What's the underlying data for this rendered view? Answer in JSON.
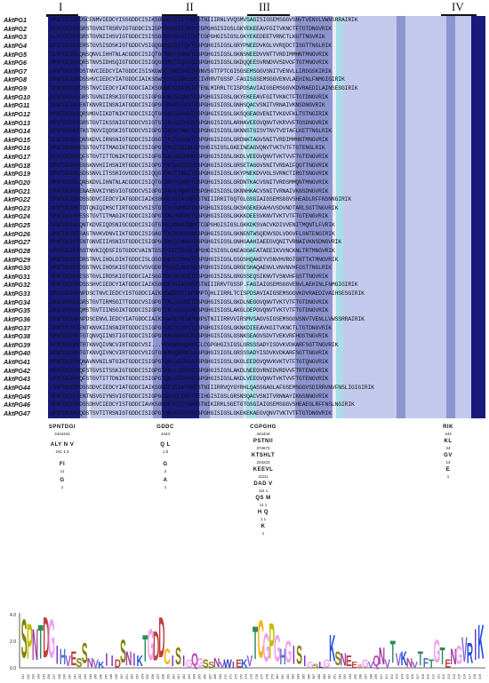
{
  "motifs": [
    "I",
    "II",
    "III",
    "IV"
  ],
  "sequence_names": [
    "AktPG1",
    "AktPG2",
    "AktPG3",
    "AktPG4",
    "AktPG5",
    "AktPG6",
    "AktPG7",
    "AktPG8",
    "AktPG9",
    "AktPG10",
    "AktPG11",
    "AktPG12",
    "AktPG13",
    "AktPG14",
    "AktPG15",
    "AktPG16",
    "AktPG17",
    "AktPG18",
    "AktPG19",
    "AktPG20",
    "AktPG21",
    "AktPG22",
    "AktPG23",
    "AktPG24",
    "AktPG25",
    "AktPG26",
    "AktPG27",
    "AktPG28",
    "AktPG29",
    "AktPG30",
    "AktPG31",
    "AktPG32",
    "AktPG33",
    "AktPG34",
    "AktPG35",
    "AktPG36",
    "AktPG37",
    "AktPG38",
    "AktPG39",
    "AktPG40",
    "AktPG41",
    "AktPG42",
    "AktPG43",
    "AktPG44",
    "AktPG45",
    "AktPG46",
    "AktPG47"
  ],
  "sequences": [
    "SPNTDGIDPDSCENMVIEDCYISSGDDCISIKSGWDQYGIAYGRPSTNIIIRNLVVQSMVSAGISIGSEMSGGVSNVTVENVLVWNSRRAIRIK",
    "SPNTDGIHIGRSTGVNITRSRVIGTGDDCISIGPGSSNISISNVYCGPGHGISIGSLGKYEKEEAVFGITVKNCTFTGTDNGVRIK",
    "SLNTDGIHIGRSTGVNIIHSVIGTGDDCISISSGSPGVDVAITSVTCGPGHGISIGSLGKYEKEDEETVRNCTLKGTTNGVRIK",
    "SPNTDGIHIERSTGVSISDSKIGTGDDCVSIGQGNSQISITQVTCGPGHGISIGSLGRYPNEEDVKGLVVRQDCTISGTTNGLRIK",
    "SLNTDGIHLQNSQNVLIHHTNLACGDDCISIQTGCSNVYINNVTCGPGHGISIGSLGKNSNEEDVVNTTVRDIMMHNTMNGVRIK",
    "SPNTDGIHIQRSTNVSIDHSQIGTGDDCISIGQGSSNITIQKIQCGPGHGISIGSLGKDQQEESVRNDVVSDVGFTGTMNGVRIK",
    "SPNTDGIDPDSTNVCIEDCYIATGDDCISISKGWDEYGKSSNIIVRNVSGTTPTCGISGSEMSGGVSNITVENVLLIRDGSKIRIK",
    "SPNTDGIDPDSSHVCIEDCYIATGDDCIAIKSGWDEYGIGRKSSEIIVRRVTGSSP.FAGISGSEMSGGVENVLAEHINLFNMGIGIRIK",
    "SPNTDGIDPDSSTNVCIEDCYIATGDDCIAIKSGWDEYGIAVGIPTENLMIRRLTCISPDSAVIAIGSEMSGGVKDVRAEDILAINSESGIRIK",
    "SPNTDGIHIGRSTGVNIIRSKIGTGDDCISIGPGSSNISIQNVYCGPGHGISIGSLGKYEKEEAVFGITVKNCTFTGTDNGVRIK",
    "SPNTDGIHVENTKNVRIINSNIATGDDCISIGPGCSDVDIEKVTCGPGHGISIGSLGNHSQACVSNITVRNAIVKNSDNGVRIK",
    "SPNTDGIHIQRSMGVIIKDTNIKTGDDCISIQTGCSNISIKKVTCGPGHGISIGSLGKSQGEAGVENITVKGVFKLTSTNGIRIK",
    "SPNTDGIHIGRSTGVTIKSSNIGTGDDCVSIGTGTTNLWIEHIDCGPGHGISIGSLARHAVEEGVQNVTVKRVVFTGSDNGVRIK",
    "SPNTDGIHITKSTNVVIQDSKIGTGDDCVSIGPGTTNIKINKVTCGPGHGISIGSLGKNNSTGISVTNVTVDTAFLKETTNGLRIK",
    "SLNTDGIHLQNSKDVLIRNSNIGTGDDCISIGSGTTNISIGRVTCGPGHGISIGSLGRDNKTAGVSNITVRDIMMHNTMNGVRIK",
    "SPNTDGIHVESSTGVTITMAGIKTGDDCISIGPGTENLEIQIACGPGHGISIGSLGKEINEAGVQNVTVKTVTFTGTENGLRIK",
    "SPNTDGIHVQFSTGVTITTDNIKTGDDCISIGPGTSNLWIEHVKCGPGHGISIGSLGKDLVEEGVQNVTVKTVVFTGTENGVRIK",
    "SPNTDGIHVEGSKNVHIIHSNIRTGDDCISIGPGTSNIWIERVSCGPGHGISIGSLGRSETAGGVSNITVRDAIFQGTTNGVRIK",
    "SPNTDGIHLSDSSNVLITSSRIGVGDDCISIQQGTHNITIKNITCGPGHGISIGSLGKYPNEKDVVGLSVRNCTIRGTSNGVRIK",
    "SPNTDGIHLQNSKDVLIHNTNLACGDDCISIQTGCSNVYINNVTCGPGHGISIGSLGRDNTKACVSNITVRDSMMQNTMNGVRIK",
    "SPNTDGIHIENAENVKIYNSVIGTGDDCVSIGPGTRNVLVQNVTCGPGHGISIGSLGKNNHKACVSNITVRNAIVKNSDNGVRIK",
    "SPNTDGIDPDSSDDVCIEDCYIATGDDCIAIKSGWDEYGIAYARPSTNIIIRRITGQTGLGSGIAIGSEMSGGVSHEADLRFFNSNNGIRIK",
    "SPNTDGIHVTDTQNIQIMSCTIRTGDDCVSISTGTTNLKAMDITCGPGHGISIGSLGKSKGEKEKAHVVSDVNDTARLSGTTNGVRIK",
    "SPNTDGIHVESSTGVTITMAGIKTGDDCISIGPGTSNLHVEHVTCGPGHGISIGSLGKKKDEESVKNVTVKTVTFTGTENGVRIK",
    "SPNTDGIHLQNTKDVEIQDSNIGCGDDCISIGTGTGCANVHINNVTCGPGHGISIGSLGKKDKSVACVKDIVVENITMQNTLFVRIK",
    "SPNTDGIHISASTNVKVDNVIIKTGDDCISIGAGTTNISVKNVACGPGHGISIGSLGKNENTWSQENVSDLVDGVFLSNTENGIRIK",
    "SPNTDGIHIENTGNVEIIHSNIGTGDDCISIGPGCSNISINGVTCGPGHGISIGSLGNHGAAHIAEEGVQNITVRNAIVKNSDNGVRIK",
    "SPNTDGIDISSTNVKIQDSFIGTGDDCVAINTGSSYINITGVNCGPGHGISIGSLGKEAGGAFATAEEIKVVNCKNLTRTMNGVRIK",
    "SPNTDGIHIDRSTNVLIHDLDIKTGDDCISLGSGSNDISIRKVTCGPGHGISIGSLGSGSHQAKEYVSNVHVRGTGNTTKTMNGVRIK",
    "SPNTDGIHIDSSTNVLIHDSKIGTGDDCVSVGDGTHSRILAHINCGPGHGISIGSLGRGESHAQAENVLVNVNVHFGSTTNGLRIK",
    "SPNTDGIHIESSTGVLIRDSKIGTGDDCIAISGGTSHLRIRSITCGPGHGISIGSLGRGSSEQSIKNVTVSNVHFGSTTNGVRIK",
    "SPNTDGIDPDSSSHVCIEDCYIATGDDCIAIKSGWDEYGIAYGRPSTNIIIRRVTGSSP.FAGIAIGSEMSGGVENVLAEHINLFNMGIGIRIK",
    "SPNTDGIHFNPDSCTNVCIEDCYISTGDDCIAIKSGWDEYGIAFGMPTQHLIIRRLTCISPDSAVIAIGSEMSGGVKDVRAEDIVAIHSESGIRIK",
    "SPNTDGIHIGRSTGVTIRMSGITTGDDCVSIGPGTTNLWIERITCGPGHGISIGSLGKDLNEGGVQNVTVKTVTFTGTDNGVRIK",
    "SPNTDGIHVQMSTGVTIINSGIKTGDDCISIGPGTTNLWIEQIACGPGHGISIGSLAKGLDEPGVQNVTVKTVTFTGTDNGVRIK",
    "SPNTDGIHFNPDSCENVLIEDCYIATGDDCIAIKSGWDEYGIAYGRPSTNIIIRRVVIRSMVSAGVSIGSEMSGGVSNVTVENLLVWSSRRAIRIK",
    "SPNTDGIHIENTKNVKIINSNIRTGDDCISIGPGSSNISIQNVTCGPGHGISIGSLGKNKDIEEAVKGITVKNCTLTGTDNGVRIK",
    "SPNTDGIHVTGTQNVQIINSTIGTGDDCISIGPGSKMVQARHIRCGPGHGISIGSLGSNKSEAGVSDVTVEKVRFHGSTNGVRIK",
    "SPNTDGIHVTRTKNVQIVNCVIRTGDDCVSI...VRASKMVQAMNILCGPGHGISIGSLGRSSSADYISDVKVDKARFSGTTNGVRIK",
    "SPNTDGIHVTGTKNVQIVNCVIRTGDDCVSIGTGSKMVQAMNILCGPGHGISIGSLGRSSSADYISDVKVDKARFSGTTNGVRIK",
    "SPNTDGIHVQNAVNVNILNTGIKTGDDCISIGPGTQNLWIERIACGPGHGISIGSLGKGLEEDGVQNVKVKTVTFTGTQNGVRIK",
    "SPNTDGIHVQFSTGVSITSSKIGTGDDCISIGPGTKNLLIERVGCGPGHGISIGSLAKDLNEEGVRNIDVRDVVFTRTENGVRIK",
    "SPNTDGIHVQFSTGVTITTDNIKTGDDCISIGPGTQNLWIEHVKCGPGHGISIGSLAKDLVEEGVQNVTVKTVVFTGTENGVRIK",
    "FSNTDGIDPDSSDDVCIEDCYIATGDDCIAIKSGWDEYGIAYGRPSTNIIIRRVQYGYRHLQASSGAGLAFGSEMSGGVSDIRRVNVFNSLIGIGIRIK",
    "SPNTDGIHIENTNSVGIYNSVIGTGDDCISIGPGCSGVDLENVTTEIHGISIGSLGRSNSQACVSNITVRNNAYIKNSNNGVRIK",
    "SPNTDGIDPDSSDHVCIEDCYISTGDDCIAVKSGWDEYGISYAHPSTNIKIRRLSGETGTGSGIAIGSEMSGGVSHEAEGLRFFNSLNGIRIK",
    "SPNTDGIHVQDSTSVTITRSNIGTGDDCISIGPGTSNVWIEHVSCGPGHGISIGSLGKEKEKAEGVQNVTVKTVTFTGTDNGVRIK",
    "SPNTDGIHVQNAVNVRILNTGIKTGDDCISIGPGTQNLWIERVTCGPGHGISIGSLGKGLEEDGVQNVKVRKVTFTGTQNGVRIK"
  ],
  "consensus": [
    {
      "res": "SPNTDGI",
      "sub": "4444444"
    },
    {
      "res": "ALY N V",
      "sub": "241 1 3"
    },
    {
      "res": "FI",
      "sub": "11"
    },
    {
      "res": "G",
      "sub": "1"
    },
    {
      "res": "GDDC",
      "sub": "4444"
    },
    {
      "res": "Q L",
      "sub": "1 5"
    },
    {
      "res": "G",
      "sub": "2"
    },
    {
      "res": "A",
      "sub": "1"
    },
    {
      "res": "CGPGHG",
      "sub": "444444"
    },
    {
      "res": "PSTNII",
      "sub": "374673"
    },
    {
      "res": "KTSHLT",
      "sub": "234223"
    },
    {
      "res": "KEEVL",
      "sub": "11111"
    },
    {
      "res": "DAD V",
      "sub": "111 1"
    },
    {
      "res": "QS M",
      "sub": "11 1"
    },
    {
      "res": "H Q",
      "sub": "1 1"
    },
    {
      "res": "K",
      "sub": "1"
    },
    {
      "res": "RIK",
      "sub": "444"
    },
    {
      "res": "KL",
      "sub": "24"
    },
    {
      "res": "GV",
      "sub": "13"
    },
    {
      "res": "E",
      "sub": "1"
    }
  ],
  "logo": {
    "y_ticks": [
      "4.0",
      "2.0",
      "0.0"
    ],
    "x_start": 231,
    "x_end": 319,
    "letters": "SPNTDGIHVESSNVKIIDSNIKTGDDCISIGQGSSNVWIEKVTCGPGHGISIGSLGKSNEEAGVQNVTVKNVTFTGTENGVRIK"
  }
}
